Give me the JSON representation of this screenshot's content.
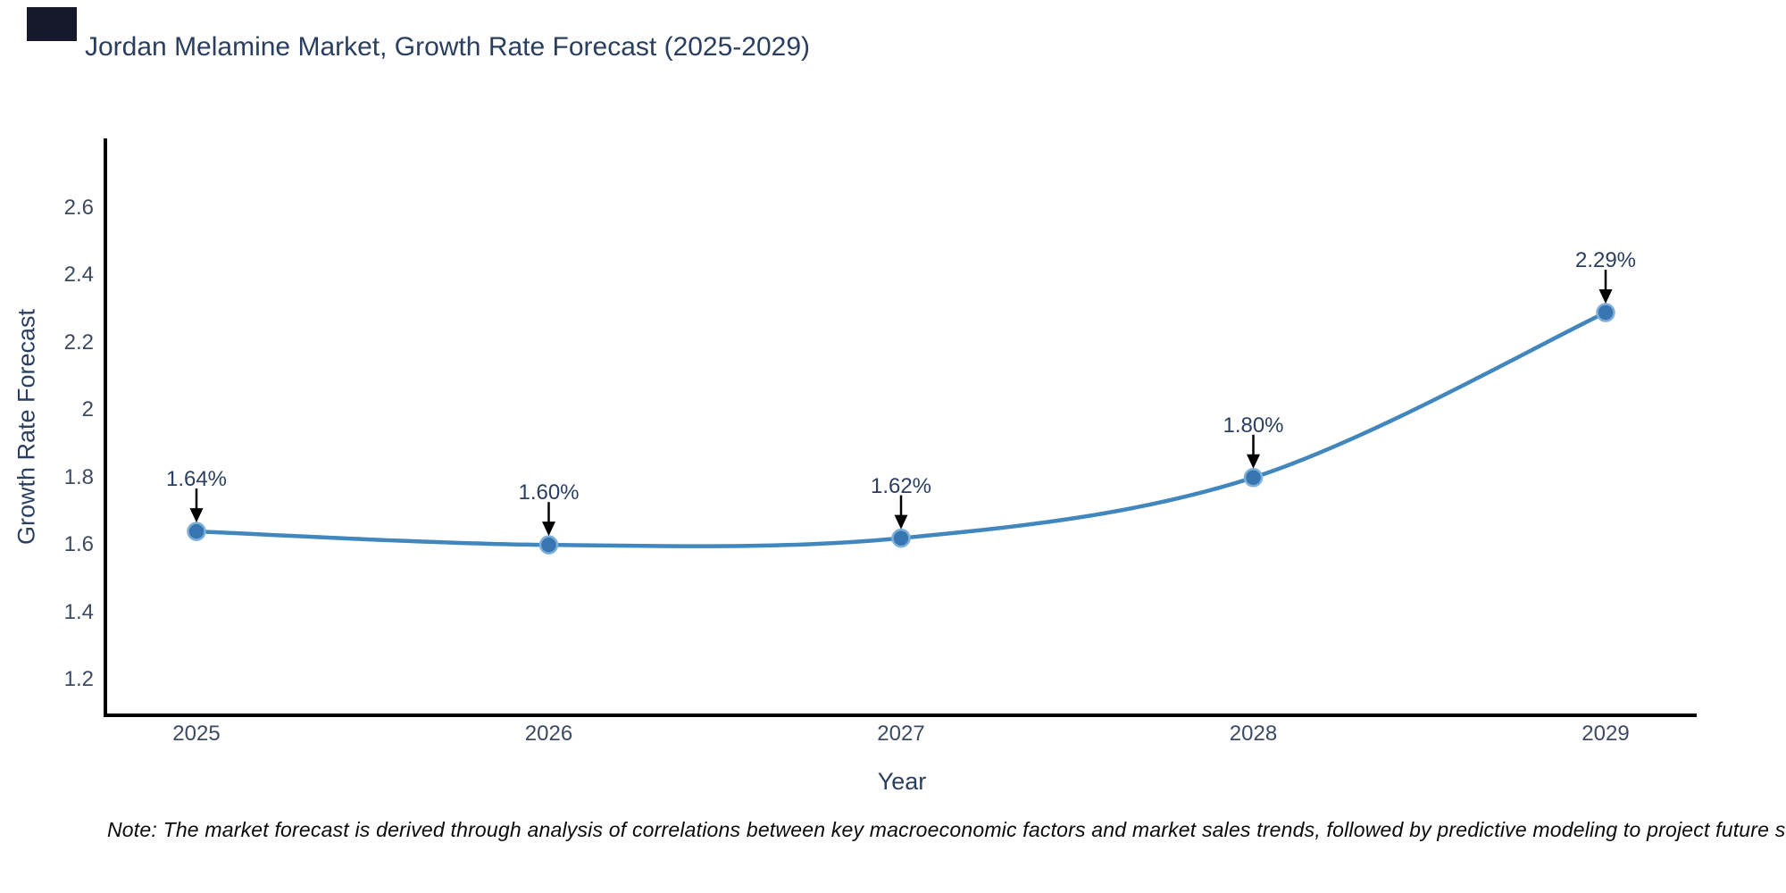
{
  "page": {
    "background": "#ffffff"
  },
  "artifact": {
    "color": "#16182c"
  },
  "chart_data": {
    "type": "line",
    "title": "Jordan Melamine Market, Growth Rate Forecast (2025-2029)",
    "xlabel": "Year",
    "ylabel": "Growth Rate Forecast",
    "categories": [
      "2025",
      "2026",
      "2027",
      "2028",
      "2029"
    ],
    "series": [
      {
        "name": "Growth Rate Forecast",
        "values": [
          1.64,
          1.6,
          1.62,
          1.8,
          2.29
        ]
      }
    ],
    "point_labels": [
      "1.64%",
      "1.60%",
      "1.62%",
      "1.80%",
      "2.29%"
    ],
    "yticks": [
      1.2,
      1.4,
      1.6,
      1.8,
      2,
      2.2,
      2.4,
      2.6
    ],
    "ytick_labels": [
      "1.2",
      "1.4",
      "1.6",
      "1.8",
      "2",
      "2.2",
      "2.4",
      "2.6"
    ],
    "ylim": [
      1.094,
      2.807
    ],
    "grid": false,
    "legend": "none",
    "line_shape": "spline",
    "colors": {
      "line": "#4186bd",
      "marker_fill": "#3876b2",
      "marker_edge": "#7fb0d8",
      "axis_line": "#000000",
      "title_text": "#2a3f5f",
      "tick_text": "#3d4a63",
      "annotation_text": "#2a3f5f",
      "arrow": "#000000"
    }
  },
  "footnote": {
    "text": "Note: The market forecast is derived through analysis of correlations between key macroeconomic factors and market sales trends, followed by predictive modeling to project future sales"
  }
}
